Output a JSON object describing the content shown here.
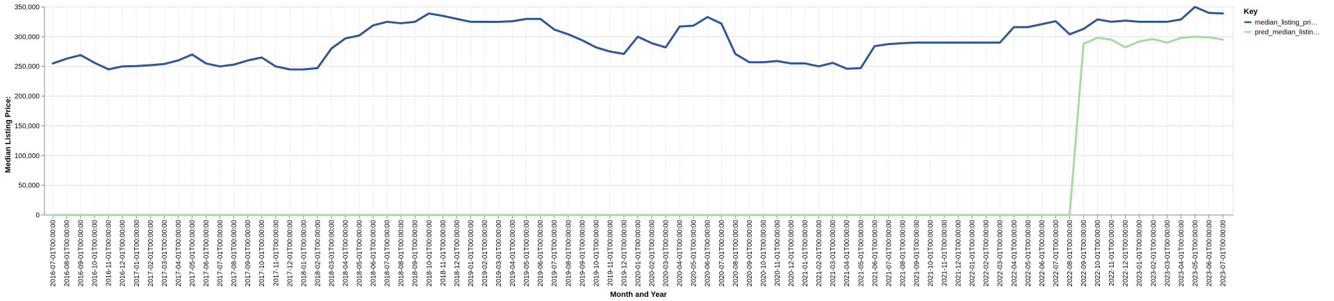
{
  "chart_data": {
    "type": "line",
    "xlabel": "Month and Year",
    "ylabel": "Median Listing Price:",
    "ylim": [
      0,
      350000
    ],
    "yticks": [
      0,
      50000,
      100000,
      150000,
      200000,
      250000,
      300000,
      350000
    ],
    "ytick_labels": [
      "0",
      "50,000",
      "100,000",
      "150,000",
      "200,000",
      "250,000",
      "300,000",
      "350,000"
    ],
    "grid": true,
    "legend": {
      "title": "Key",
      "placement": "top-right"
    },
    "x": [
      "2016-07-01T00:00:00",
      "2016-08-01T00:00:00",
      "2016-09-01T00:00:00",
      "2016-10-01T00:00:00",
      "2016-11-01T00:00:00",
      "2016-12-01T00:00:00",
      "2017-01-01T00:00:00",
      "2017-02-01T00:00:00",
      "2017-03-01T00:00:00",
      "2017-04-01T00:00:00",
      "2017-05-01T00:00:00",
      "2017-06-01T00:00:00",
      "2017-07-01T00:00:00",
      "2017-08-01T00:00:00",
      "2017-09-01T00:00:00",
      "2017-10-01T00:00:00",
      "2017-11-01T00:00:00",
      "2017-12-01T00:00:00",
      "2018-01-01T00:00:00",
      "2018-02-01T00:00:00",
      "2018-03-01T00:00:00",
      "2018-04-01T00:00:00",
      "2018-05-01T00:00:00",
      "2018-06-01T00:00:00",
      "2018-07-01T00:00:00",
      "2018-08-01T00:00:00",
      "2018-09-01T00:00:00",
      "2018-10-01T00:00:00",
      "2018-11-01T00:00:00",
      "2018-12-01T00:00:00",
      "2019-01-01T00:00:00",
      "2019-02-01T00:00:00",
      "2019-03-01T00:00:00",
      "2019-04-01T00:00:00",
      "2019-05-01T00:00:00",
      "2019-06-01T00:00:00",
      "2019-07-01T00:00:00",
      "2019-08-01T00:00:00",
      "2019-09-01T00:00:00",
      "2019-10-01T00:00:00",
      "2019-11-01T00:00:00",
      "2019-12-01T00:00:00",
      "2020-01-01T00:00:00",
      "2020-02-01T00:00:00",
      "2020-03-01T00:00:00",
      "2020-04-01T00:00:00",
      "2020-05-01T00:00:00",
      "2020-06-01T00:00:00",
      "2020-07-01T00:00:00",
      "2020-08-01T00:00:00",
      "2020-09-01T00:00:00",
      "2020-10-01T00:00:00",
      "2020-11-01T00:00:00",
      "2020-12-01T00:00:00",
      "2021-01-01T00:00:00",
      "2021-02-01T00:00:00",
      "2021-03-01T00:00:00",
      "2021-04-01T00:00:00",
      "2021-05-01T00:00:00",
      "2021-06-01T00:00:00",
      "2021-07-01T00:00:00",
      "2021-08-01T00:00:00",
      "2021-09-01T00:00:00",
      "2021-10-01T00:00:00",
      "2021-11-01T00:00:00",
      "2021-12-01T00:00:00",
      "2022-01-01T00:00:00",
      "2022-02-01T00:00:00",
      "2022-03-01T00:00:00",
      "2022-04-01T00:00:00",
      "2022-05-01T00:00:00",
      "2022-06-01T00:00:00",
      "2022-07-01T00:00:00",
      "2022-08-01T00:00:00",
      "2022-09-01T00:00:00",
      "2022-10-01T00:00:00",
      "2022-11-01T00:00:00",
      "2022-12-01T00:00:00",
      "2023-01-01T00:00:00",
      "2023-02-01T00:00:00",
      "2023-03-01T00:00:00",
      "2023-04-01T00:00:00",
      "2023-05-01T00:00:00",
      "2023-06-01T00:00:00",
      "2023-07-01T00:00:00"
    ],
    "series": [
      {
        "name": "median_listing_pri…",
        "color": "#2a56a0",
        "values": [
          255000,
          263000,
          269000,
          256000,
          245000,
          250000,
          250500,
          252000,
          254000,
          260000,
          270000,
          255000,
          249900,
          253000,
          260000,
          265000,
          250000,
          245000,
          244900,
          247000,
          280000,
          297000,
          302000,
          319000,
          325000,
          322500,
          325000,
          339000,
          335000,
          329900,
          325000,
          324900,
          324900,
          325900,
          329900,
          329900,
          312000,
          304000,
          294000,
          282000,
          275000,
          271000,
          300000,
          289000,
          282000,
          317000,
          318500,
          333000,
          322000,
          271000,
          257000,
          257000,
          259000,
          255000,
          255000,
          250000,
          256000,
          246000,
          247000,
          284000,
          287500,
          289000,
          290000,
          290000,
          290000,
          290000,
          290000,
          290000,
          290000,
          316000,
          316000,
          321000,
          326000,
          304000,
          313000,
          329000,
          325000,
          327000,
          325000,
          325000,
          325000,
          329000,
          350000,
          340000,
          339000
        ]
      },
      {
        "name": "pred_median_listin…",
        "color": "#a6dba0",
        "values": [
          0,
          0,
          0,
          0,
          0,
          0,
          0,
          0,
          0,
          0,
          0,
          0,
          0,
          0,
          0,
          0,
          0,
          0,
          0,
          0,
          0,
          0,
          0,
          0,
          0,
          0,
          0,
          0,
          0,
          0,
          0,
          0,
          0,
          0,
          0,
          0,
          0,
          0,
          0,
          0,
          0,
          0,
          0,
          0,
          0,
          0,
          0,
          0,
          0,
          0,
          0,
          0,
          0,
          0,
          0,
          0,
          0,
          0,
          0,
          0,
          0,
          0,
          0,
          0,
          0,
          0,
          0,
          0,
          0,
          0,
          0,
          0,
          0,
          0,
          288000,
          298000,
          295000,
          282000,
          292000,
          296000,
          290000,
          298000,
          300000,
          299000,
          295000
        ]
      }
    ]
  }
}
